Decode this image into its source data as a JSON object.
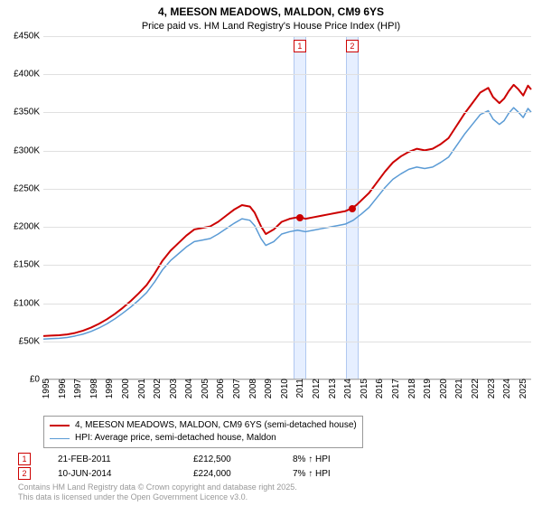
{
  "title": "4, MEESON MEADOWS, MALDON, CM9 6YS",
  "subtitle": "Price paid vs. HM Land Registry's House Price Index (HPI)",
  "chart": {
    "type": "line",
    "background_color": "#ffffff",
    "grid_color": "#e0e0e0",
    "axis_color": "#aaaaaa",
    "text_color": "#000000",
    "tick_fontsize": 10,
    "ylim": [
      0,
      450000
    ],
    "ytick_step": 50000,
    "yticks": [
      "£0",
      "£50K",
      "£100K",
      "£150K",
      "£200K",
      "£250K",
      "£300K",
      "£350K",
      "£400K",
      "£450K"
    ],
    "xlim": [
      1995,
      2025.7
    ],
    "xticks": [
      1995,
      1996,
      1997,
      1998,
      1999,
      2000,
      2001,
      2002,
      2003,
      2004,
      2005,
      2006,
      2007,
      2008,
      2009,
      2010,
      2011,
      2012,
      2013,
      2014,
      2015,
      2016,
      2017,
      2018,
      2019,
      2020,
      2021,
      2022,
      2023,
      2024,
      2025
    ],
    "band_color": "#e6efff",
    "band_border": "#b0c8f0",
    "bands": [
      {
        "x": 2011.14,
        "label": "1"
      },
      {
        "x": 2014.44,
        "label": "2"
      }
    ],
    "series": [
      {
        "name": "property",
        "label": "4, MEESON MEADOWS, MALDON, CM9 6YS (semi-detached house)",
        "color": "#cc0000",
        "line_width": 2,
        "data": [
          [
            1995,
            56000
          ],
          [
            1995.5,
            56500
          ],
          [
            1996,
            57000
          ],
          [
            1996.5,
            58000
          ],
          [
            1997,
            60000
          ],
          [
            1997.5,
            63000
          ],
          [
            1998,
            67000
          ],
          [
            1998.5,
            72000
          ],
          [
            1999,
            78000
          ],
          [
            1999.5,
            85000
          ],
          [
            2000,
            93000
          ],
          [
            2000.5,
            102000
          ],
          [
            2001,
            112000
          ],
          [
            2001.5,
            123000
          ],
          [
            2002,
            138000
          ],
          [
            2002.5,
            155000
          ],
          [
            2003,
            168000
          ],
          [
            2003.5,
            178000
          ],
          [
            2004,
            188000
          ],
          [
            2004.5,
            196000
          ],
          [
            2005,
            198000
          ],
          [
            2005.5,
            200000
          ],
          [
            2006,
            206000
          ],
          [
            2006.5,
            214000
          ],
          [
            2007,
            222000
          ],
          [
            2007.5,
            228000
          ],
          [
            2008,
            226000
          ],
          [
            2008.3,
            218000
          ],
          [
            2008.7,
            200000
          ],
          [
            2009,
            190000
          ],
          [
            2009.5,
            196000
          ],
          [
            2010,
            206000
          ],
          [
            2010.5,
            210000
          ],
          [
            2011,
            212000
          ],
          [
            2011.14,
            212500
          ],
          [
            2011.5,
            210000
          ],
          [
            2012,
            212000
          ],
          [
            2012.5,
            214000
          ],
          [
            2013,
            216000
          ],
          [
            2013.5,
            218000
          ],
          [
            2014,
            220000
          ],
          [
            2014.44,
            224000
          ],
          [
            2014.7,
            228000
          ],
          [
            2015,
            234000
          ],
          [
            2015.5,
            244000
          ],
          [
            2016,
            258000
          ],
          [
            2016.5,
            272000
          ],
          [
            2017,
            284000
          ],
          [
            2017.5,
            292000
          ],
          [
            2018,
            298000
          ],
          [
            2018.5,
            302000
          ],
          [
            2019,
            300000
          ],
          [
            2019.5,
            302000
          ],
          [
            2020,
            308000
          ],
          [
            2020.5,
            316000
          ],
          [
            2021,
            332000
          ],
          [
            2021.5,
            348000
          ],
          [
            2022,
            362000
          ],
          [
            2022.5,
            376000
          ],
          [
            2023,
            382000
          ],
          [
            2023.3,
            370000
          ],
          [
            2023.7,
            362000
          ],
          [
            2024,
            368000
          ],
          [
            2024.3,
            378000
          ],
          [
            2024.6,
            386000
          ],
          [
            2024.9,
            380000
          ],
          [
            2025.2,
            372000
          ],
          [
            2025.5,
            385000
          ],
          [
            2025.7,
            380000
          ]
        ]
      },
      {
        "name": "hpi",
        "label": "HPI: Average price, semi-detached house, Maldon",
        "color": "#5b9bd5",
        "line_width": 1.5,
        "data": [
          [
            1995,
            52000
          ],
          [
            1995.5,
            52500
          ],
          [
            1996,
            53000
          ],
          [
            1996.5,
            54000
          ],
          [
            1997,
            56000
          ],
          [
            1997.5,
            58500
          ],
          [
            1998,
            62000
          ],
          [
            1998.5,
            66500
          ],
          [
            1999,
            72000
          ],
          [
            1999.5,
            78500
          ],
          [
            2000,
            86000
          ],
          [
            2000.5,
            94000
          ],
          [
            2001,
            103000
          ],
          [
            2001.5,
            113000
          ],
          [
            2002,
            127000
          ],
          [
            2002.5,
            143000
          ],
          [
            2003,
            155000
          ],
          [
            2003.5,
            164000
          ],
          [
            2004,
            173000
          ],
          [
            2004.5,
            180000
          ],
          [
            2005,
            182000
          ],
          [
            2005.5,
            184000
          ],
          [
            2006,
            190000
          ],
          [
            2006.5,
            197000
          ],
          [
            2007,
            204000
          ],
          [
            2007.5,
            210000
          ],
          [
            2008,
            208000
          ],
          [
            2008.3,
            201000
          ],
          [
            2008.7,
            184000
          ],
          [
            2009,
            175000
          ],
          [
            2009.5,
            180000
          ],
          [
            2010,
            190000
          ],
          [
            2010.5,
            193000
          ],
          [
            2011,
            195000
          ],
          [
            2011.5,
            193000
          ],
          [
            2012,
            195000
          ],
          [
            2012.5,
            197000
          ],
          [
            2013,
            199000
          ],
          [
            2013.5,
            201000
          ],
          [
            2014,
            203000
          ],
          [
            2014.5,
            208000
          ],
          [
            2015,
            216000
          ],
          [
            2015.5,
            225000
          ],
          [
            2016,
            238000
          ],
          [
            2016.5,
            251000
          ],
          [
            2017,
            262000
          ],
          [
            2017.5,
            269000
          ],
          [
            2018,
            275000
          ],
          [
            2018.5,
            278000
          ],
          [
            2019,
            276000
          ],
          [
            2019.5,
            278000
          ],
          [
            2020,
            284000
          ],
          [
            2020.5,
            291000
          ],
          [
            2021,
            306000
          ],
          [
            2021.5,
            321000
          ],
          [
            2022,
            334000
          ],
          [
            2022.5,
            347000
          ],
          [
            2023,
            352000
          ],
          [
            2023.3,
            341000
          ],
          [
            2023.7,
            334000
          ],
          [
            2024,
            339000
          ],
          [
            2024.3,
            349000
          ],
          [
            2024.6,
            356000
          ],
          [
            2024.9,
            350000
          ],
          [
            2025.2,
            343000
          ],
          [
            2025.5,
            355000
          ],
          [
            2025.7,
            350000
          ]
        ]
      }
    ],
    "sale_points": [
      {
        "x": 2011.14,
        "y": 212500,
        "color": "#cc0000"
      },
      {
        "x": 2014.44,
        "y": 224000,
        "color": "#cc0000"
      }
    ]
  },
  "legend": {
    "border_color": "#999999",
    "fontsize": 10
  },
  "sales": [
    {
      "idx": "1",
      "date": "21-FEB-2011",
      "price": "£212,500",
      "pct": "8% ↑ HPI"
    },
    {
      "idx": "2",
      "date": "10-JUN-2014",
      "price": "£224,000",
      "pct": "7% ↑ HPI"
    }
  ],
  "attribution": {
    "line1": "Contains HM Land Registry data © Crown copyright and database right 2025.",
    "line2": "This data is licensed under the Open Government Licence v3.0.",
    "color": "#999999"
  }
}
